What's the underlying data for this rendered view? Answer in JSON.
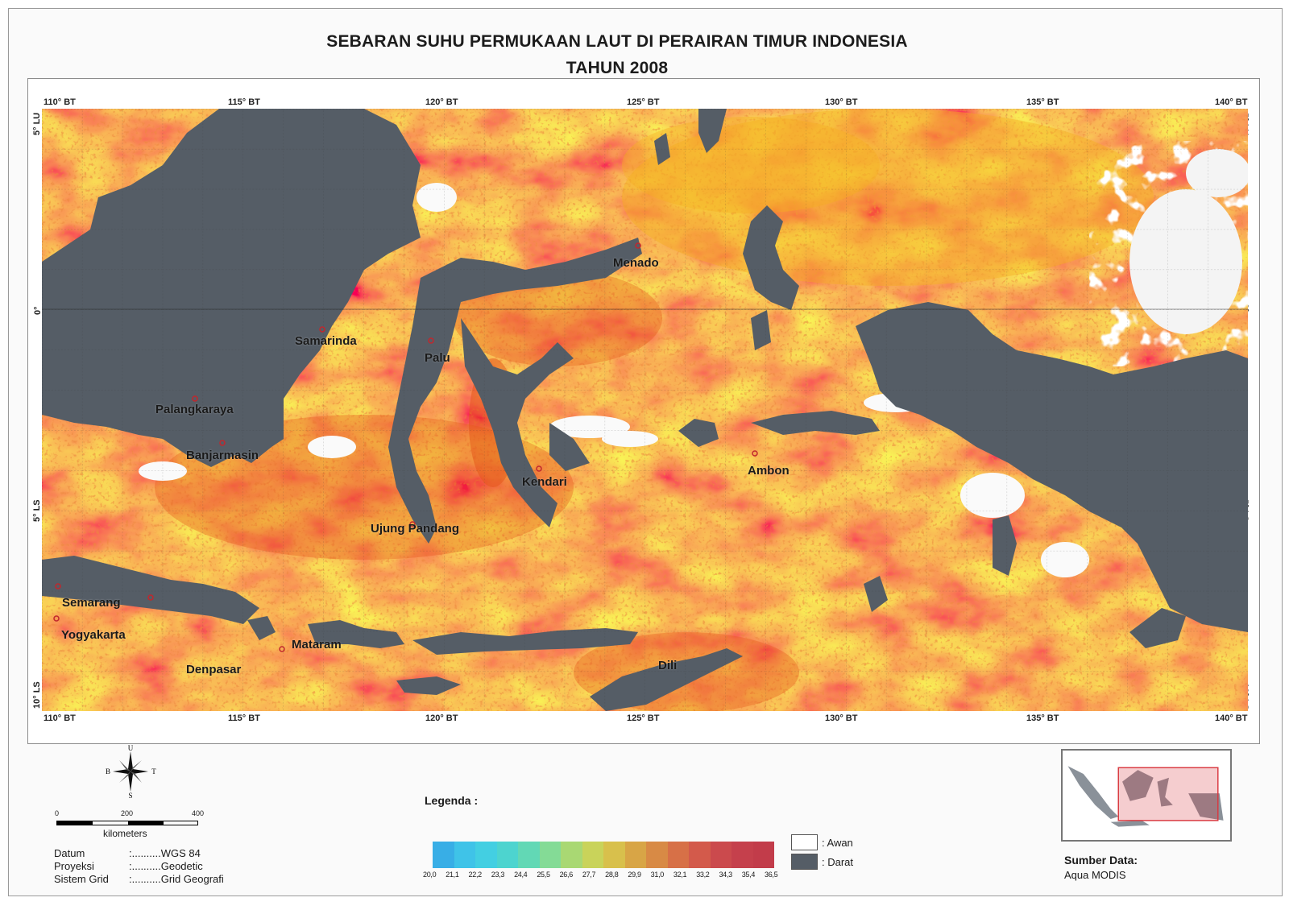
{
  "title": {
    "line1": "SEBARAN SUHU PERMUKAAN LAUT DI PERAIRAN TIMUR INDONESIA",
    "line2": "TAHUN 2008"
  },
  "map": {
    "longitude_labels": [
      "110° BT",
      "115° BT",
      "120° BT",
      "125° BT",
      "130° BT",
      "135° BT",
      "140° BT"
    ],
    "latitude_labels": [
      "5° LU",
      "0°",
      "5° LS",
      "10° LS"
    ],
    "cities": {
      "menado": "Menado",
      "samarinda": "Samarinda",
      "palu": "Palu",
      "palangkaraya": "Palangkaraya",
      "banjarmasin": "Banjarmasin",
      "kendari": "Kendari",
      "ambon": "Ambon",
      "ujung_pandang": "Ujung Pandang",
      "semarang": "Semarang",
      "yogyakarta": "Yogyakarta",
      "mataram": "Mataram",
      "denpasar": "Denpasar",
      "dili": "Dili"
    },
    "colors": {
      "sea_base": "#f08a22",
      "sea_warm": "#e45418",
      "sea_cool": "#f5b021",
      "land": "#555d66",
      "cloud": "#ffffff"
    }
  },
  "compass": {
    "north": "U",
    "south": "S",
    "west": "B",
    "east": "T"
  },
  "scale_bar": {
    "ticks": [
      "0",
      "200",
      "400"
    ],
    "unit": "kilometers"
  },
  "metadata": {
    "datum_label": "Datum",
    "datum_value": ":..........WGS 84",
    "projection_label": "Proyeksi",
    "projection_value": ":..........Geodetic",
    "grid_label": "Sistem Grid",
    "grid_value": ":..........Grid Geografi"
  },
  "legend": {
    "title": "Legenda :",
    "values": [
      "20,0",
      "21,1",
      "22,2",
      "23,3",
      "24,4",
      "25,5",
      "26,6",
      "27,7",
      "28,8",
      "29,9",
      "31,0",
      "32,1",
      "33,2",
      "34,3",
      "35,4",
      "36,5"
    ],
    "ramp_colors": [
      "#38aee6",
      "#3fc3e8",
      "#43cfe2",
      "#4dd4cf",
      "#62d8b5",
      "#84db96",
      "#a9d873",
      "#c9d35a",
      "#d8c04c",
      "#d8a546",
      "#d88a45",
      "#d77047",
      "#d35a4b",
      "#cb4a4d",
      "#c5404c",
      "#c23c4a"
    ],
    "cloud_label": ": Awan",
    "land_label": ": Darat",
    "cloud_color": "#ffffff",
    "land_color": "#555d66"
  },
  "source": {
    "title": "Sumber Data:",
    "value": "Aqua MODIS"
  }
}
